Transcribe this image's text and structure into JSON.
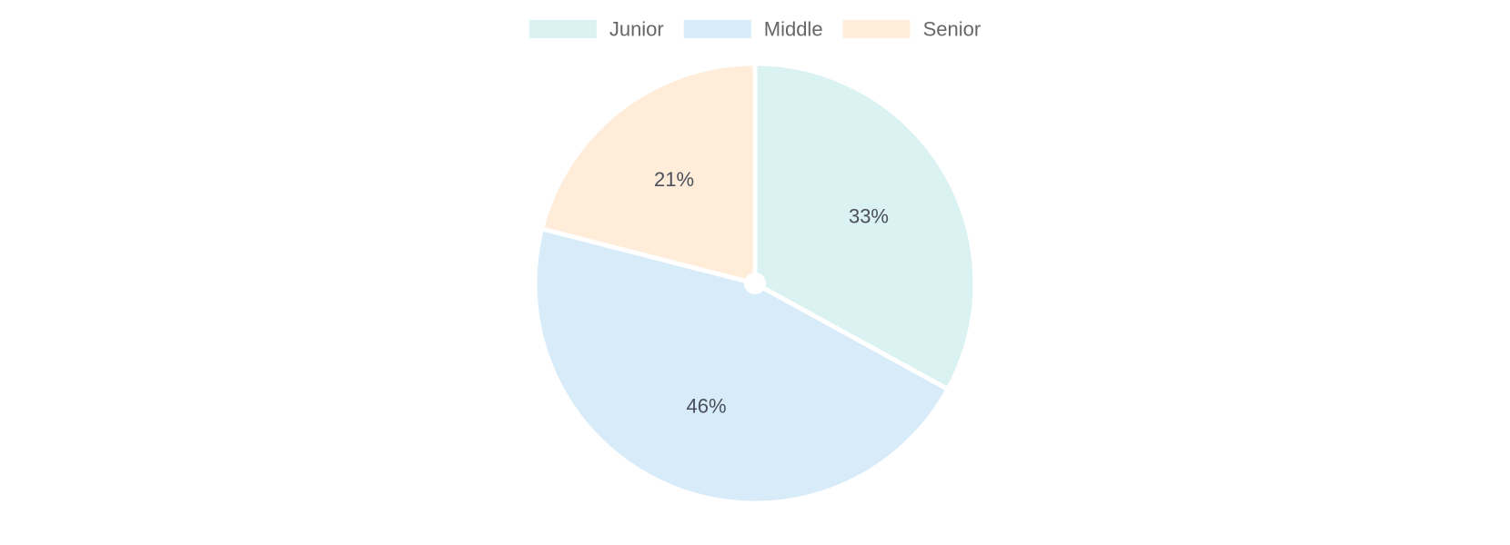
{
  "chart_data": {
    "type": "pie",
    "categories": [
      "Junior",
      "Middle",
      "Senior"
    ],
    "values": [
      33,
      46,
      21
    ],
    "value_labels": [
      "33%",
      "46%",
      "21%"
    ],
    "colors": [
      "#dbf2f2",
      "#d7ebf9",
      "#ffecd9"
    ],
    "slice_border_color": "#ffffff",
    "start_angle_deg": 0,
    "direction": "clockwise",
    "legend": {
      "position": "top",
      "entries": [
        "Junior",
        "Middle",
        "Senior"
      ]
    }
  }
}
